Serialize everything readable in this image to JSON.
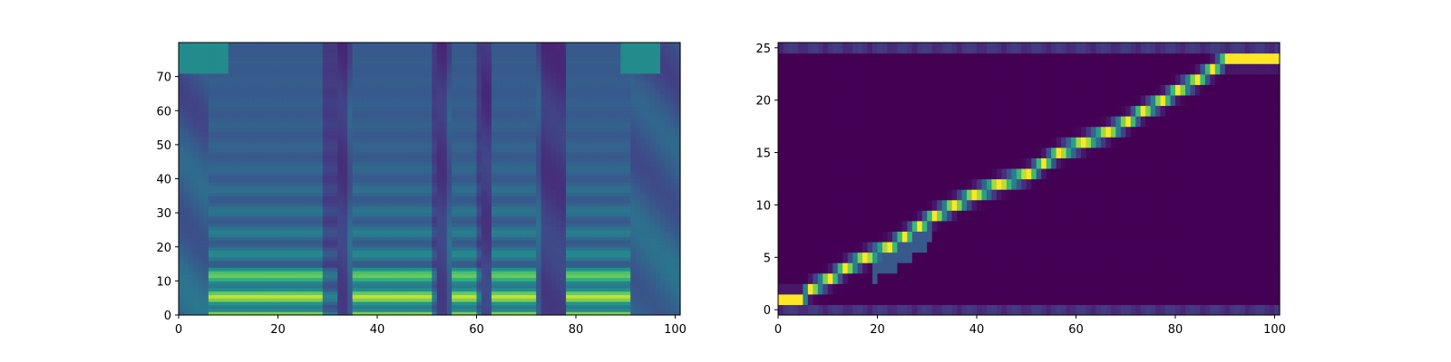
{
  "chart_data": [
    {
      "type": "heatmap",
      "title": "",
      "xlabel": "",
      "ylabel": "",
      "xlim": [
        0,
        101
      ],
      "ylim": [
        0,
        80
      ],
      "xticks": [
        0,
        20,
        40,
        60,
        80,
        100
      ],
      "yticks": [
        0,
        10,
        20,
        30,
        40,
        50,
        60,
        70
      ],
      "colormap": "viridis",
      "description_of_content": "mel-spectrogram: 101 frames x 80 mel bins",
      "voiced_segments": [
        [
          6,
          31
        ],
        [
          35,
          51
        ],
        [
          55,
          60
        ],
        [
          63,
          71
        ],
        [
          78,
          90
        ]
      ],
      "silence_columns": [
        30,
        32,
        52,
        61,
        74,
        76
      ],
      "harmonic_spacing_bins": 6.3,
      "grid": false,
      "legend": "none"
    },
    {
      "type": "heatmap",
      "title": "",
      "xlabel": "",
      "ylabel": "",
      "xlim": [
        0,
        101
      ],
      "ylim": [
        -0.5,
        25.5
      ],
      "xticks": [
        0,
        20,
        40,
        60,
        80,
        100
      ],
      "yticks": [
        0,
        5,
        10,
        15,
        20,
        25
      ],
      "colormap": "viridis",
      "description_of_content": "attention alignment: decoder steps (x) vs encoder tokens (y)",
      "alignment_path": [
        [
          0,
          1
        ],
        [
          4,
          1
        ],
        [
          6,
          2
        ],
        [
          10,
          3
        ],
        [
          13,
          4
        ],
        [
          17,
          5
        ],
        [
          22,
          6
        ],
        [
          25,
          7
        ],
        [
          28,
          8
        ],
        [
          31,
          9
        ],
        [
          35,
          10
        ],
        [
          39,
          11
        ],
        [
          44,
          12
        ],
        [
          50,
          13
        ],
        [
          53,
          14
        ],
        [
          56,
          15
        ],
        [
          61,
          16
        ],
        [
          66,
          17
        ],
        [
          70,
          18
        ],
        [
          73,
          19
        ],
        [
          77,
          20
        ],
        [
          80,
          21
        ],
        [
          84,
          22
        ],
        [
          87,
          23
        ],
        [
          90,
          24
        ],
        [
          98,
          24
        ],
        [
          100,
          24
        ]
      ],
      "grid": false,
      "legend": "none"
    }
  ]
}
